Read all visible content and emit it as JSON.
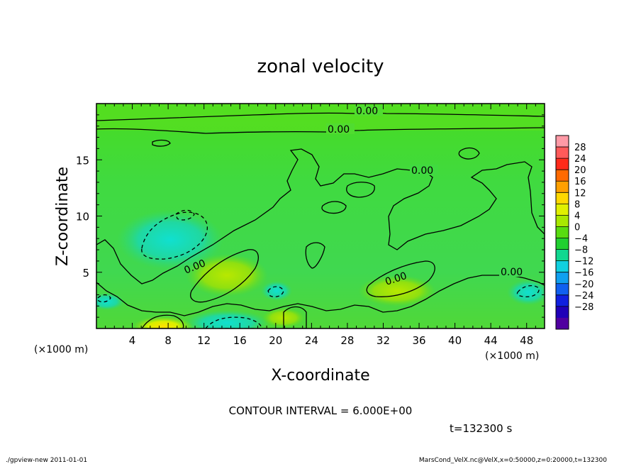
{
  "chart_data": {
    "type": "heatmap",
    "title": "zonal velocity",
    "xlabel": "X-coordinate",
    "ylabel": "Z-coordinate",
    "x_unit_label": "(×1000 m)",
    "y_unit_label": "(×1000 m)",
    "xlim": [
      0,
      50
    ],
    "ylim": [
      0,
      20
    ],
    "x_ticks": [
      4,
      8,
      12,
      16,
      20,
      24,
      28,
      32,
      36,
      40,
      44,
      48
    ],
    "y_ticks": [
      5,
      10,
      15
    ],
    "colorbar": {
      "labels": [
        "28",
        "24",
        "20",
        "16",
        "12",
        "8",
        "4",
        "0",
        "−4",
        "−8",
        "−12",
        "−16",
        "−20",
        "−24",
        "−28"
      ],
      "colors": [
        "#ff9aa6",
        "#ff5a5a",
        "#ff2a1a",
        "#ff6a00",
        "#ffa000",
        "#ffd800",
        "#e0f000",
        "#a8e800",
        "#58dc10",
        "#20d030",
        "#10d890",
        "#10d0e0",
        "#10a0f0",
        "#1060f0",
        "#1020e0",
        "#2000b8",
        "#5000a0"
      ]
    },
    "contour_interval": "CONTOUR INTERVAL = 6.000E+00",
    "contour_labels": [
      "0.00",
      "0.00",
      "0.00",
      "0.00",
      "0.00",
      "0.00"
    ],
    "time_label": "t=132300 s",
    "footer_left": "./gpview-new 2011-01-01",
    "footer_right": "MarsCond_VelX.nc@VelX,x=0:50000,z=0:20000,t=132300"
  }
}
